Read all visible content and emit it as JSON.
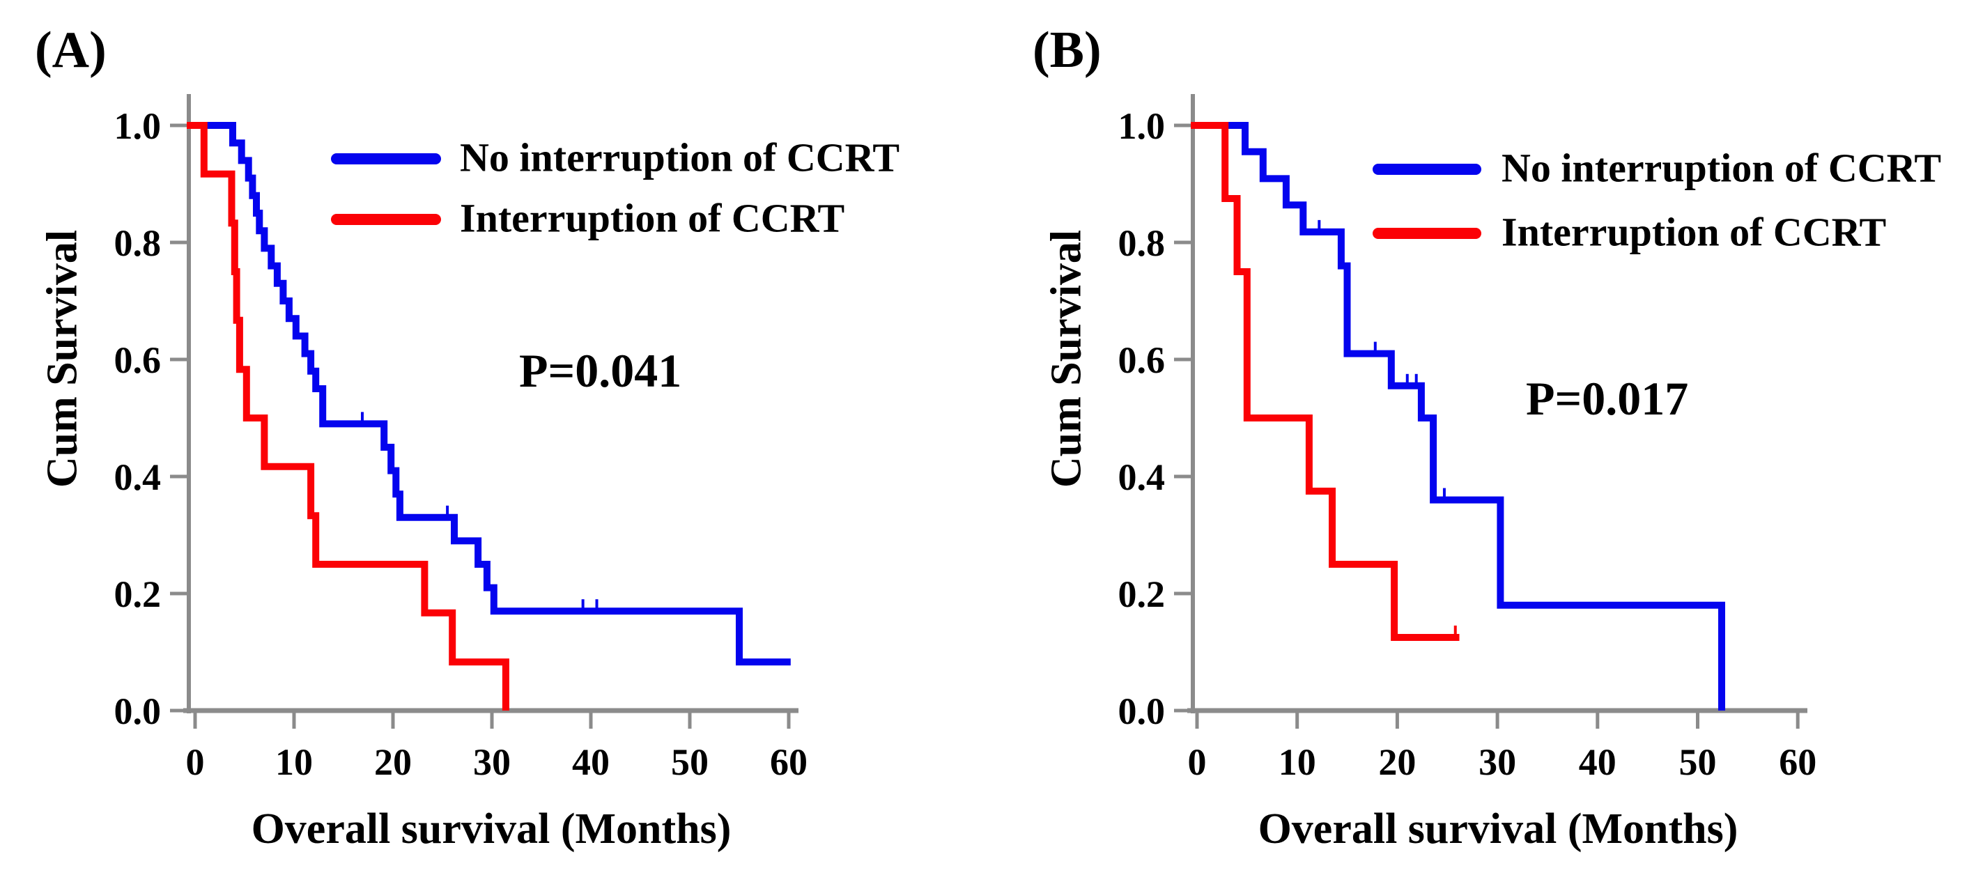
{
  "figure": {
    "background": "#FFFFFF",
    "text_color": "#000000",
    "axis_color": "#8B8B8B"
  },
  "chart_data": [
    {
      "type": "line",
      "subtype": "kaplan-meier-step",
      "panel_label": "(A)",
      "xlabel": "Overall survival (Months)",
      "ylabel": "Cum Survival",
      "annotation": "P=0.041",
      "legend_position": "upper-right-inside",
      "grid": false,
      "xlim": [
        0,
        62
      ],
      "ylim": [
        0.0,
        1.0
      ],
      "xticks": [
        0,
        10,
        20,
        30,
        40,
        50,
        60
      ],
      "yticks": [
        1.0,
        0.8,
        0.6,
        0.4,
        0.2,
        0.0
      ],
      "ytick_labels": [
        "1.0",
        "0.8",
        "0.6",
        "0.4",
        "0.2",
        "0.0"
      ],
      "axis_color": "#8B8B8B",
      "series": [
        {
          "name": "No interruption of CCRT",
          "color": "#0404EE",
          "start": [
            0,
            1.0
          ],
          "steps": [
            [
              3.8,
              0.97
            ],
            [
              4.7,
              0.94
            ],
            [
              5.4,
              0.91
            ],
            [
              5.8,
              0.88
            ],
            [
              6.2,
              0.85
            ],
            [
              6.5,
              0.82
            ],
            [
              7.0,
              0.79
            ],
            [
              7.7,
              0.76
            ],
            [
              8.3,
              0.73
            ],
            [
              8.9,
              0.7
            ],
            [
              9.5,
              0.67
            ],
            [
              10.2,
              0.64
            ],
            [
              11.1,
              0.61
            ],
            [
              11.7,
              0.58
            ],
            [
              12.2,
              0.55
            ],
            [
              12.9,
              0.49
            ],
            [
              19.1,
              0.45
            ],
            [
              19.8,
              0.41
            ],
            [
              20.3,
              0.37
            ],
            [
              20.7,
              0.33
            ],
            [
              26.2,
              0.29
            ],
            [
              28.6,
              0.25
            ],
            [
              29.5,
              0.21
            ],
            [
              30.2,
              0.17
            ],
            [
              55.0,
              0.083
            ]
          ],
          "end_time": 60.2,
          "censor_times": [
            16.9,
            25.5,
            39.2,
            40.6
          ]
        },
        {
          "name": "Interruption of CCRT",
          "color": "#FB0106",
          "start": [
            0,
            1.0
          ],
          "steps": [
            [
              0.9,
              0.917
            ],
            [
              3.7,
              0.833
            ],
            [
              4.0,
              0.75
            ],
            [
              4.2,
              0.667
            ],
            [
              4.5,
              0.583
            ],
            [
              5.2,
              0.5
            ],
            [
              7.0,
              0.417
            ],
            [
              11.7,
              0.333
            ],
            [
              12.2,
              0.25
            ],
            [
              23.2,
              0.167
            ],
            [
              26.0,
              0.083
            ],
            [
              31.4,
              0.0
            ]
          ],
          "end_time": 31.4,
          "censor_times": []
        }
      ]
    },
    {
      "type": "line",
      "subtype": "kaplan-meier-step",
      "panel_label": "(B)",
      "xlabel": "Overall survival (Months)",
      "ylabel": "Cum Survival",
      "annotation": "P=0.017",
      "legend_position": "upper-right-inside",
      "grid": false,
      "xlim": [
        0,
        62
      ],
      "ylim": [
        0.0,
        1.0
      ],
      "xticks": [
        0,
        10,
        20,
        30,
        40,
        50,
        60
      ],
      "yticks": [
        1.0,
        0.8,
        0.6,
        0.4,
        0.2,
        0.0
      ],
      "ytick_labels": [
        "1.0",
        "0.8",
        "0.6",
        "0.4",
        "0.2",
        "0.0"
      ],
      "axis_color": "#8B8B8B",
      "series": [
        {
          "name": "No interruption of CCRT",
          "color": "#0404EE",
          "start": [
            0,
            1.0
          ],
          "steps": [
            [
              4.8,
              0.955
            ],
            [
              6.6,
              0.909
            ],
            [
              8.9,
              0.864
            ],
            [
              10.6,
              0.818
            ],
            [
              14.4,
              0.76
            ],
            [
              15.0,
              0.61
            ],
            [
              19.4,
              0.555
            ],
            [
              22.4,
              0.5
            ],
            [
              23.6,
              0.36
            ],
            [
              30.3,
              0.18
            ],
            [
              52.4,
              0.0
            ]
          ],
          "end_time": 52.4,
          "censor_times": [
            12.2,
            17.8,
            21.0,
            21.9,
            24.7
          ]
        },
        {
          "name": "Interruption of CCRT",
          "color": "#FB0106",
          "start": [
            0,
            1.0
          ],
          "steps": [
            [
              2.8,
              0.875
            ],
            [
              4.0,
              0.75
            ],
            [
              5.0,
              0.5
            ],
            [
              11.2,
              0.375
            ],
            [
              13.5,
              0.25
            ],
            [
              19.7,
              0.125
            ]
          ],
          "end_time": 26.2,
          "censor_times": [
            25.8
          ]
        }
      ]
    }
  ]
}
